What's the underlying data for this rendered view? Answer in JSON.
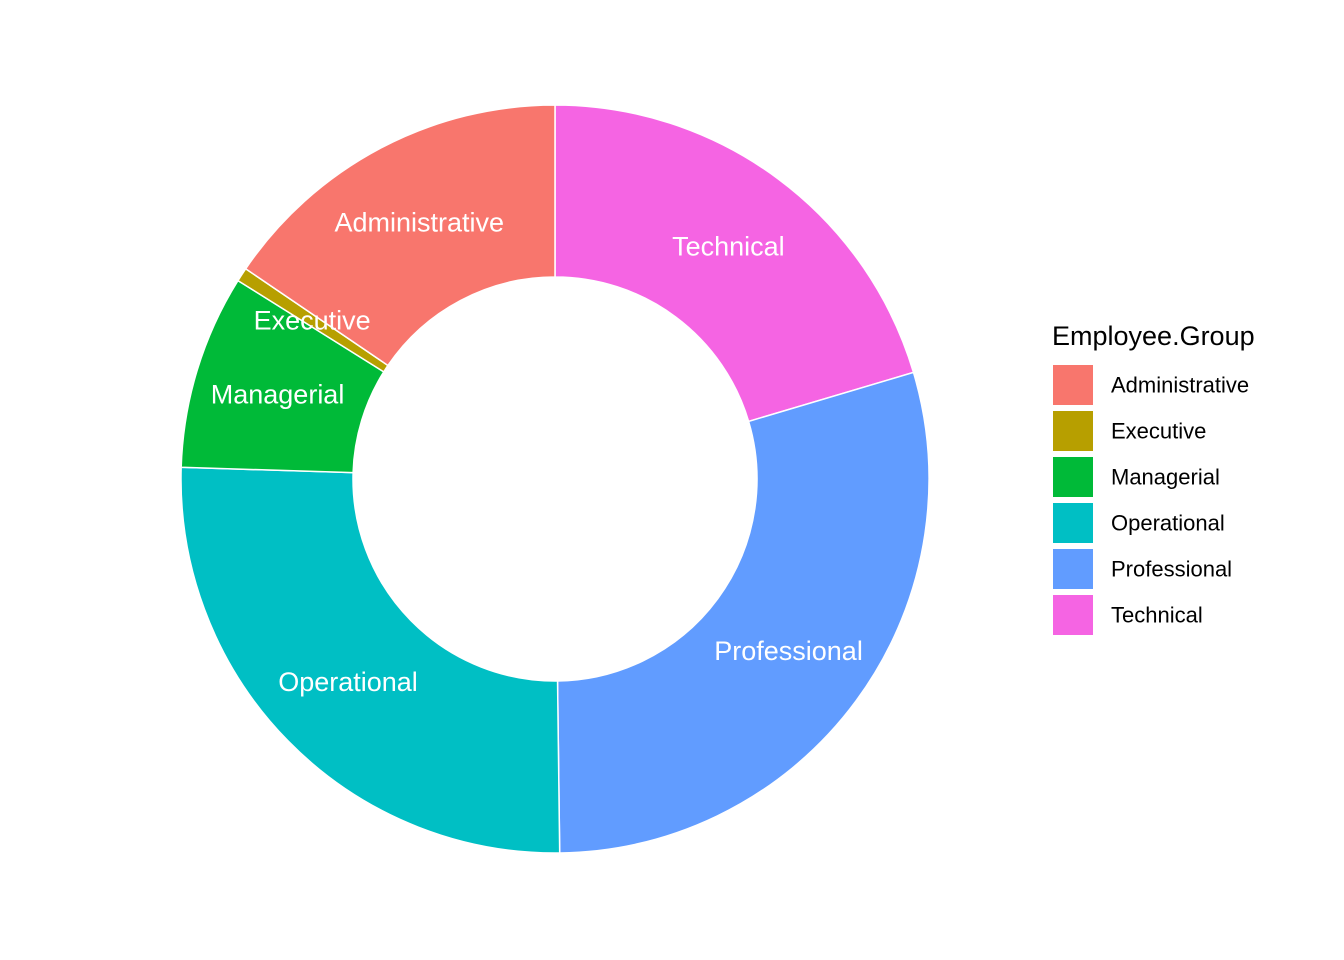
{
  "chart_data": {
    "type": "pie",
    "variant": "donut",
    "legend": {
      "title": "Employee.Group",
      "placement": "right"
    },
    "slices": [
      {
        "label": "Technical",
        "value": 20.4,
        "color": "#F564E3"
      },
      {
        "label": "Professional",
        "value": 29.4,
        "color": "#619CFF"
      },
      {
        "label": "Operational",
        "value": 25.7,
        "color": "#00BFC4"
      },
      {
        "label": "Managerial",
        "value": 8.4,
        "color": "#00BA38"
      },
      {
        "label": "Executive",
        "value": 0.6,
        "color": "#B79F00"
      },
      {
        "label": "Administrative",
        "value": 15.5,
        "color": "#F8766D"
      }
    ],
    "legend_order": [
      "Administrative",
      "Executive",
      "Managerial",
      "Operational",
      "Professional",
      "Technical"
    ]
  }
}
